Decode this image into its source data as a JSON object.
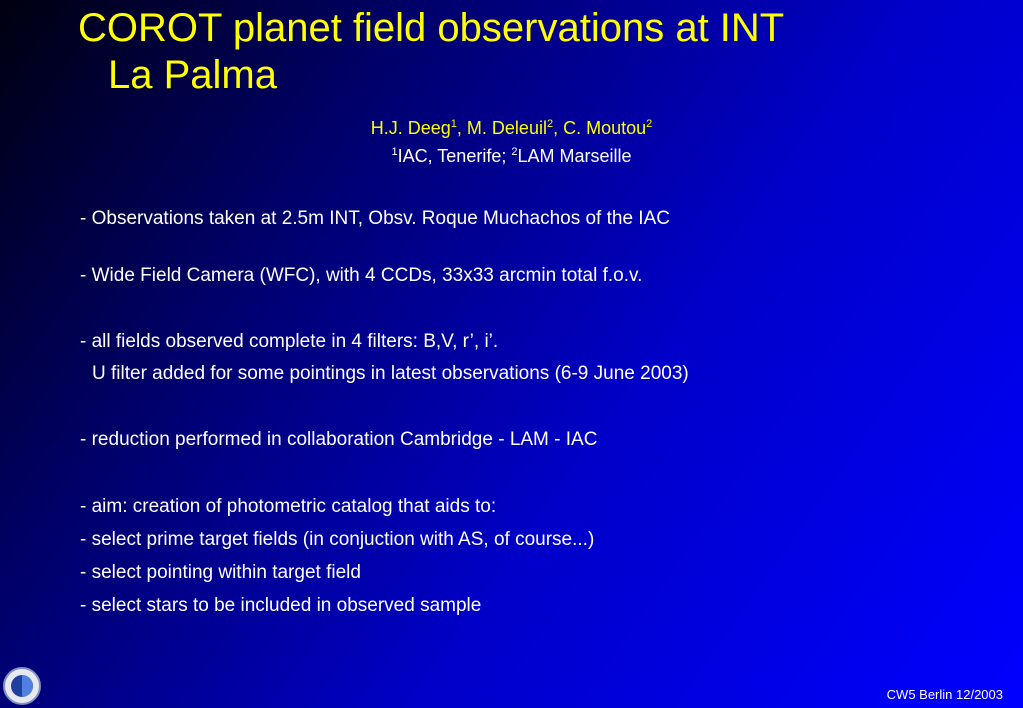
{
  "header": {
    "title_lines": [
      "COROT planet field observations at INT",
      "La Palma"
    ],
    "authors": [
      {
        "name": "H.J. Deeg",
        "mark": "1"
      },
      {
        "name": "M. Deleuil",
        "mark": "2"
      },
      {
        "name": "C. Moutou",
        "mark": "2"
      }
    ],
    "author_separator": ", ",
    "affiliations": [
      {
        "mark": "1",
        "name": "IAC, Tenerife"
      },
      {
        "mark": "2",
        "name": "LAM Marseille"
      }
    ],
    "affiliation_separator": "; "
  },
  "body": {
    "lines": [
      "- Observations taken at 2.5m INT, Obsv. Roque Muchachos of the IAC",
      "- Wide Field Camera (WFC), with 4 CCDs, 33x33 arcmin total f.o.v.",
      "- all fields observed complete in 4 filters: B,V, r’, i’.",
      "U filter added for some pointings in latest observations (6-9 June 2003)",
      "- reduction performed in collaboration Cambridge - LAM - IAC",
      "- aim: creation of photometric catalog that aids to:",
      "- select prime target fields (in conjuction with AS, of course...)",
      "- select pointing within target field",
      "- select stars to be included in observed sample"
    ]
  },
  "footer": {
    "text": "CW5 Berlin 12/2003"
  }
}
